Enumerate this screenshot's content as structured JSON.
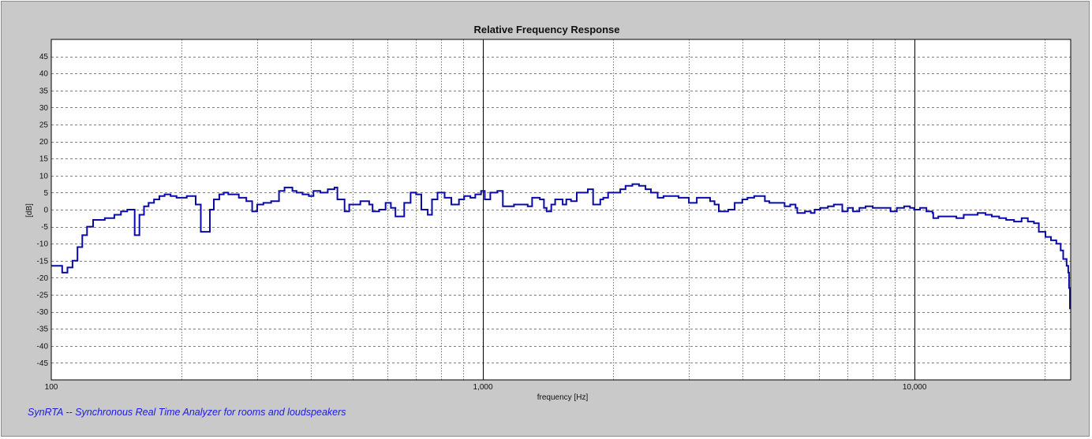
{
  "footer": {
    "text": "SynRTA -- Synchronous Real Time Analyzer for rooms and loudspeakers"
  },
  "chart_data": {
    "type": "line",
    "title": "Relative Frequency Response",
    "xlabel": "frequency [Hz]",
    "ylabel": "[dB]",
    "x_scale": "log",
    "xlim": [
      100,
      23000
    ],
    "ylim": [
      -50,
      50
    ],
    "x_tick_labels": [
      {
        "value": 100,
        "label": "100"
      },
      {
        "value": 1000,
        "label": "1,000"
      },
      {
        "value": 10000,
        "label": "10,000"
      }
    ],
    "y_ticks": [
      45,
      40,
      35,
      30,
      25,
      20,
      15,
      10,
      5,
      0,
      -5,
      -10,
      -15,
      -20,
      -25,
      -30,
      -35,
      -40,
      -45
    ],
    "grid": true,
    "legend": "none",
    "colors": {
      "line": "#0a0aa8",
      "plot_bg": "#ffffff",
      "frame_bg": "#c9c9c9",
      "footer": "#1a1ae6"
    },
    "series": [
      {
        "style": "step",
        "points": [
          [
            100,
            -16.5
          ],
          [
            103,
            -16.5
          ],
          [
            106,
            -18.5
          ],
          [
            109,
            -17
          ],
          [
            112,
            -15
          ],
          [
            115,
            -11
          ],
          [
            118,
            -7.5
          ],
          [
            121,
            -5
          ],
          [
            125,
            -3
          ],
          [
            133,
            -2.5
          ],
          [
            140,
            -1.5
          ],
          [
            145,
            -0.5
          ],
          [
            150,
            0
          ],
          [
            156,
            -7.5
          ],
          [
            160,
            -1.5
          ],
          [
            164,
            1
          ],
          [
            168,
            2
          ],
          [
            173,
            3
          ],
          [
            178,
            4
          ],
          [
            183,
            4.5
          ],
          [
            189,
            4
          ],
          [
            195,
            3.5
          ],
          [
            200,
            3.5
          ],
          [
            206,
            4
          ],
          [
            216,
            1.5
          ],
          [
            222,
            -6.5
          ],
          [
            228,
            -6.5
          ],
          [
            233,
            0
          ],
          [
            238,
            3
          ],
          [
            245,
            4.5
          ],
          [
            251,
            5
          ],
          [
            257,
            4.5
          ],
          [
            272,
            3.5
          ],
          [
            283,
            2.5
          ],
          [
            292,
            -0.5
          ],
          [
            300,
            1.5
          ],
          [
            310,
            2
          ],
          [
            323,
            2.5
          ],
          [
            337,
            5.5
          ],
          [
            347,
            6.5
          ],
          [
            362,
            5.5
          ],
          [
            370,
            5
          ],
          [
            382,
            4.5
          ],
          [
            395,
            4
          ],
          [
            405,
            5.5
          ],
          [
            420,
            5
          ],
          [
            437,
            6
          ],
          [
            453,
            6.5
          ],
          [
            460,
            3
          ],
          [
            478,
            -0.5
          ],
          [
            490,
            1.5
          ],
          [
            520,
            2.5
          ],
          [
            545,
            1.5
          ],
          [
            555,
            -0.5
          ],
          [
            575,
            0
          ],
          [
            595,
            2
          ],
          [
            612,
            0.5
          ],
          [
            627,
            -2
          ],
          [
            657,
            2
          ],
          [
            680,
            5
          ],
          [
            700,
            4.5
          ],
          [
            720,
            0
          ],
          [
            745,
            -1.5
          ],
          [
            762,
            3
          ],
          [
            785,
            5
          ],
          [
            815,
            3.5
          ],
          [
            845,
            1.5
          ],
          [
            880,
            3
          ],
          [
            905,
            4
          ],
          [
            935,
            3.5
          ],
          [
            960,
            4.5
          ],
          [
            990,
            5.5
          ],
          [
            1010,
            3
          ],
          [
            1040,
            5
          ],
          [
            1080,
            5.5
          ],
          [
            1112,
            1
          ],
          [
            1180,
            1.5
          ],
          [
            1270,
            1
          ],
          [
            1300,
            3.5
          ],
          [
            1355,
            3
          ],
          [
            1385,
            0.5
          ],
          [
            1405,
            -0.5
          ],
          [
            1440,
            1.5
          ],
          [
            1470,
            3
          ],
          [
            1530,
            1.5
          ],
          [
            1560,
            3
          ],
          [
            1600,
            2.5
          ],
          [
            1650,
            5
          ],
          [
            1700,
            5
          ],
          [
            1750,
            6
          ],
          [
            1800,
            1.5
          ],
          [
            1870,
            3
          ],
          [
            1900,
            3.5
          ],
          [
            1950,
            5
          ],
          [
            1990,
            5
          ],
          [
            2020,
            5
          ],
          [
            2080,
            6
          ],
          [
            2140,
            7
          ],
          [
            2220,
            7.5
          ],
          [
            2300,
            7
          ],
          [
            2380,
            6
          ],
          [
            2450,
            5
          ],
          [
            2540,
            3.5
          ],
          [
            2620,
            4
          ],
          [
            2840,
            3.5
          ],
          [
            3000,
            2
          ],
          [
            3130,
            3.5
          ],
          [
            3360,
            2.5
          ],
          [
            3440,
            1.5
          ],
          [
            3520,
            -0.5
          ],
          [
            3610,
            -0.5
          ],
          [
            3700,
            0
          ],
          [
            3830,
            2
          ],
          [
            3990,
            3
          ],
          [
            4100,
            3.5
          ],
          [
            4250,
            4
          ],
          [
            4500,
            2.5
          ],
          [
            4610,
            2
          ],
          [
            4840,
            2
          ],
          [
            5000,
            1
          ],
          [
            5150,
            1.5
          ],
          [
            5300,
            0.5
          ],
          [
            5350,
            -1
          ],
          [
            5570,
            -0.5
          ],
          [
            5750,
            -1
          ],
          [
            5870,
            0
          ],
          [
            6050,
            0.5
          ],
          [
            6300,
            1
          ],
          [
            6500,
            1.5
          ],
          [
            6800,
            -0.5
          ],
          [
            7000,
            0.5
          ],
          [
            7200,
            -0.5
          ],
          [
            7450,
            0.5
          ],
          [
            7700,
            1
          ],
          [
            8000,
            0.5
          ],
          [
            8300,
            0.5
          ],
          [
            8800,
            -0.5
          ],
          [
            9100,
            0.5
          ],
          [
            9460,
            1
          ],
          [
            9760,
            0.5
          ],
          [
            9980,
            0
          ],
          [
            10300,
            0.5
          ],
          [
            10650,
            -0.5
          ],
          [
            11000,
            -1
          ],
          [
            11050,
            -2.5
          ],
          [
            11350,
            -2
          ],
          [
            11700,
            -2
          ],
          [
            12500,
            -2.5
          ],
          [
            13000,
            -1.5
          ],
          [
            13600,
            -1.5
          ],
          [
            14000,
            -1
          ],
          [
            14600,
            -1.5
          ],
          [
            15100,
            -2
          ],
          [
            15700,
            -2.5
          ],
          [
            16300,
            -3
          ],
          [
            17000,
            -3.5
          ],
          [
            17700,
            -2.5
          ],
          [
            18300,
            -3.5
          ],
          [
            18900,
            -4
          ],
          [
            19400,
            -6.5
          ],
          [
            20100,
            -8
          ],
          [
            20700,
            -9
          ],
          [
            21300,
            -10
          ],
          [
            21800,
            -12
          ],
          [
            22100,
            -14.5
          ],
          [
            22500,
            -16.5
          ],
          [
            22700,
            -18.5
          ],
          [
            22800,
            -23
          ],
          [
            22900,
            -29
          ],
          [
            23000,
            -29
          ]
        ]
      }
    ]
  }
}
